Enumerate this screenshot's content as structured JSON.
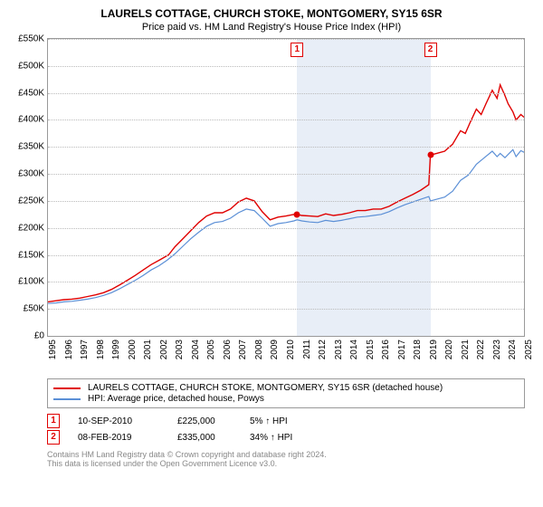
{
  "title": "LAURELS COTTAGE, CHURCH STOKE, MONTGOMERY, SY15 6SR",
  "subtitle": "Price paid vs. HM Land Registry's House Price Index (HPI)",
  "chart": {
    "type": "line",
    "background_color": "#ffffff",
    "shade_color": "#e8eef7",
    "grid_color": "#bbbbbb",
    "ylim": [
      0,
      550000
    ],
    "ytick_step": 50000,
    "yticks": [
      "£0",
      "£50K",
      "£100K",
      "£150K",
      "£200K",
      "£250K",
      "£300K",
      "£350K",
      "£400K",
      "£450K",
      "£500K",
      "£550K"
    ],
    "xlim": [
      1995,
      2025
    ],
    "xticks": [
      "1995",
      "1996",
      "1997",
      "1998",
      "1999",
      "2000",
      "2001",
      "2002",
      "2003",
      "2004",
      "2005",
      "2006",
      "2007",
      "2008",
      "2009",
      "2010",
      "2011",
      "2012",
      "2013",
      "2014",
      "2015",
      "2016",
      "2017",
      "2018",
      "2019",
      "2020",
      "2021",
      "2022",
      "2023",
      "2024",
      "2025"
    ],
    "shade_start_year": 2010.7,
    "shade_end_year": 2019.1,
    "series": {
      "price_paid": {
        "color": "#e00000",
        "width": 1.4,
        "points": [
          [
            1995,
            63000
          ],
          [
            1995.5,
            65000
          ],
          [
            1996,
            67000
          ],
          [
            1996.5,
            68000
          ],
          [
            1997,
            70000
          ],
          [
            1997.5,
            73000
          ],
          [
            1998,
            76000
          ],
          [
            1998.5,
            80000
          ],
          [
            1999,
            86000
          ],
          [
            1999.5,
            94000
          ],
          [
            2000,
            103000
          ],
          [
            2000.5,
            112000
          ],
          [
            2001,
            122000
          ],
          [
            2001.5,
            132000
          ],
          [
            2002,
            140000
          ],
          [
            2002.3,
            145000
          ],
          [
            2002.6,
            150000
          ],
          [
            2003,
            165000
          ],
          [
            2003.5,
            180000
          ],
          [
            2004,
            195000
          ],
          [
            2004.5,
            210000
          ],
          [
            2005,
            222000
          ],
          [
            2005.5,
            228000
          ],
          [
            2006,
            228000
          ],
          [
            2006.5,
            235000
          ],
          [
            2007,
            248000
          ],
          [
            2007.5,
            255000
          ],
          [
            2008,
            250000
          ],
          [
            2008.5,
            230000
          ],
          [
            2009,
            215000
          ],
          [
            2009.5,
            220000
          ],
          [
            2010,
            222000
          ],
          [
            2010.5,
            225000
          ],
          [
            2010.7,
            225000
          ],
          [
            2011,
            223000
          ],
          [
            2011.5,
            222000
          ],
          [
            2012,
            221000
          ],
          [
            2012.5,
            226000
          ],
          [
            2013,
            223000
          ],
          [
            2013.5,
            225000
          ],
          [
            2014,
            228000
          ],
          [
            2014.5,
            232000
          ],
          [
            2015,
            232000
          ],
          [
            2015.5,
            235000
          ],
          [
            2016,
            235000
          ],
          [
            2016.5,
            240000
          ],
          [
            2017,
            248000
          ],
          [
            2017.5,
            255000
          ],
          [
            2018,
            262000
          ],
          [
            2018.5,
            270000
          ],
          [
            2019,
            280000
          ],
          [
            2019.1,
            335000
          ],
          [
            2019.5,
            338000
          ],
          [
            2020,
            342000
          ],
          [
            2020.5,
            355000
          ],
          [
            2021,
            380000
          ],
          [
            2021.3,
            375000
          ],
          [
            2021.6,
            395000
          ],
          [
            2022,
            420000
          ],
          [
            2022.3,
            410000
          ],
          [
            2022.6,
            430000
          ],
          [
            2023,
            455000
          ],
          [
            2023.3,
            440000
          ],
          [
            2023.5,
            465000
          ],
          [
            2023.8,
            445000
          ],
          [
            2024,
            430000
          ],
          [
            2024.3,
            415000
          ],
          [
            2024.5,
            400000
          ],
          [
            2024.8,
            410000
          ],
          [
            2025,
            405000
          ]
        ]
      },
      "hpi": {
        "color": "#5b8fd6",
        "width": 1.2,
        "points": [
          [
            1995,
            60000
          ],
          [
            1995.5,
            61000
          ],
          [
            1996,
            63000
          ],
          [
            1996.5,
            64000
          ],
          [
            1997,
            66000
          ],
          [
            1997.5,
            68000
          ],
          [
            1998,
            71000
          ],
          [
            1998.5,
            75000
          ],
          [
            1999,
            80000
          ],
          [
            1999.5,
            87000
          ],
          [
            2000,
            95000
          ],
          [
            2000.5,
            103000
          ],
          [
            2001,
            112000
          ],
          [
            2001.5,
            122000
          ],
          [
            2002,
            130000
          ],
          [
            2002.5,
            140000
          ],
          [
            2003,
            152000
          ],
          [
            2003.5,
            166000
          ],
          [
            2004,
            180000
          ],
          [
            2004.5,
            192000
          ],
          [
            2005,
            203000
          ],
          [
            2005.5,
            210000
          ],
          [
            2006,
            212000
          ],
          [
            2006.5,
            218000
          ],
          [
            2007,
            228000
          ],
          [
            2007.5,
            235000
          ],
          [
            2008,
            232000
          ],
          [
            2008.5,
            218000
          ],
          [
            2009,
            203000
          ],
          [
            2009.5,
            208000
          ],
          [
            2010,
            210000
          ],
          [
            2010.5,
            213000
          ],
          [
            2010.7,
            215000
          ],
          [
            2011,
            213000
          ],
          [
            2011.5,
            211000
          ],
          [
            2012,
            210000
          ],
          [
            2012.5,
            214000
          ],
          [
            2013,
            212000
          ],
          [
            2013.5,
            214000
          ],
          [
            2014,
            217000
          ],
          [
            2014.5,
            220000
          ],
          [
            2015,
            221000
          ],
          [
            2015.5,
            223000
          ],
          [
            2016,
            225000
          ],
          [
            2016.5,
            230000
          ],
          [
            2017,
            237000
          ],
          [
            2017.5,
            243000
          ],
          [
            2018,
            248000
          ],
          [
            2018.5,
            253000
          ],
          [
            2019,
            258000
          ],
          [
            2019.1,
            250000
          ],
          [
            2019.5,
            253000
          ],
          [
            2020,
            257000
          ],
          [
            2020.5,
            268000
          ],
          [
            2021,
            288000
          ],
          [
            2021.5,
            298000
          ],
          [
            2022,
            318000
          ],
          [
            2022.5,
            330000
          ],
          [
            2023,
            342000
          ],
          [
            2023.3,
            332000
          ],
          [
            2023.5,
            338000
          ],
          [
            2023.8,
            330000
          ],
          [
            2024,
            336000
          ],
          [
            2024.3,
            345000
          ],
          [
            2024.5,
            332000
          ],
          [
            2024.8,
            343000
          ],
          [
            2025,
            340000
          ]
        ]
      }
    },
    "sale_points": [
      {
        "year": 2010.7,
        "price": 225000
      },
      {
        "year": 2019.1,
        "price": 335000
      }
    ]
  },
  "legend": {
    "line1": "LAURELS COTTAGE, CHURCH STOKE, MONTGOMERY, SY15 6SR (detached house)",
    "line2": "HPI: Average price, detached house, Powys"
  },
  "sales": [
    {
      "idx": "1",
      "date": "10-SEP-2010",
      "price": "£225,000",
      "hpi": "5% ↑ HPI"
    },
    {
      "idx": "2",
      "date": "08-FEB-2019",
      "price": "£335,000",
      "hpi": "34% ↑ HPI"
    }
  ],
  "footer": {
    "line1": "Contains HM Land Registry data © Crown copyright and database right 2024.",
    "line2": "This data is licensed under the Open Government Licence v3.0."
  }
}
